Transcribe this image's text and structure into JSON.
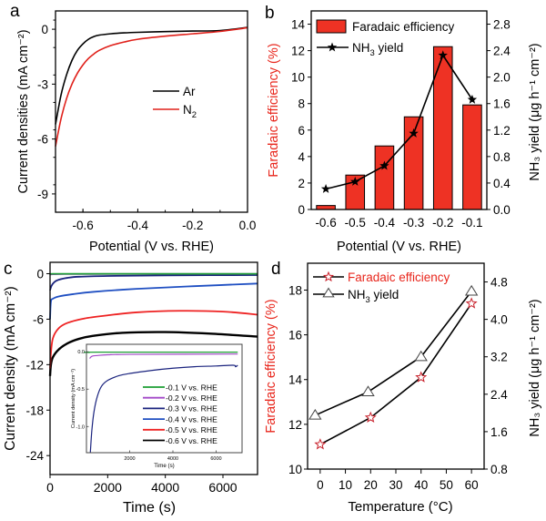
{
  "chart_data": [
    {
      "panel": "a",
      "type": "line",
      "xlabel": "Potential (V vs. RHE)",
      "ylabel": "Current densities (mA cm⁻²)",
      "xlim": [
        -0.7,
        0.0
      ],
      "ylim": [
        -10,
        1
      ],
      "xticks": [
        -0.6,
        -0.4,
        -0.2,
        0.0
      ],
      "xtick_labels": [
        "-0.6",
        "-0.4",
        "-0.2",
        "0.0"
      ],
      "yticks": [
        0,
        -3,
        -6,
        -9
      ],
      "ytick_labels": [
        "0",
        "-3",
        "-6",
        "-9"
      ],
      "legend": "center-right",
      "series": [
        {
          "name": "Ar",
          "label_main": "Ar",
          "label_sub": "",
          "color": "#000000",
          "x": [
            -0.7,
            -0.68,
            -0.66,
            -0.64,
            -0.62,
            -0.6,
            -0.58,
            -0.56,
            -0.54,
            -0.5,
            -0.45,
            -0.4,
            -0.3,
            -0.2,
            -0.1,
            0.0
          ],
          "y": [
            -5.2,
            -3.6,
            -2.5,
            -1.7,
            -1.15,
            -0.8,
            -0.55,
            -0.4,
            -0.32,
            -0.25,
            -0.2,
            -0.17,
            -0.13,
            -0.1,
            -0.07,
            0.1
          ]
        },
        {
          "name": "N2",
          "label_main": "N",
          "label_sub": "2",
          "color": "#e0201a",
          "x": [
            -0.7,
            -0.68,
            -0.66,
            -0.64,
            -0.62,
            -0.6,
            -0.58,
            -0.56,
            -0.54,
            -0.5,
            -0.45,
            -0.4,
            -0.3,
            -0.2,
            -0.1,
            0.0
          ],
          "y": [
            -6.4,
            -4.9,
            -3.8,
            -3.0,
            -2.4,
            -1.95,
            -1.6,
            -1.35,
            -1.15,
            -0.9,
            -0.7,
            -0.55,
            -0.38,
            -0.25,
            -0.12,
            0.08
          ]
        }
      ]
    },
    {
      "panel": "b",
      "type": "bar",
      "categories": [
        "-0.6",
        "-0.5",
        "-0.4",
        "-0.3",
        "-0.2",
        "-0.1"
      ],
      "xlabel": "Potential (V vs. RHE)",
      "ylabel": "Faradaic efficiency (%)",
      "ylabel2": "NH₃ yield (μg h⁻¹ cm⁻²)",
      "ylim": [
        0,
        15
      ],
      "ylim2": [
        0,
        3.0
      ],
      "yticks": [
        0,
        2,
        4,
        6,
        8,
        10,
        12,
        14
      ],
      "yticks2": [
        "0.0",
        "0.4",
        "0.8",
        "1.2",
        "1.6",
        "2.0",
        "2.4",
        "2.8"
      ],
      "legend": "top-left",
      "series": [
        {
          "name": "Faradaic efficiency",
          "type": "bar",
          "axis": "left",
          "color": "#ee3224",
          "values": [
            0.3,
            2.6,
            4.8,
            7.0,
            12.3,
            7.9
          ]
        },
        {
          "name": "NH3 yield",
          "label_main": "NH",
          "label_sub": "3",
          "label_rest": " yield",
          "type": "line",
          "marker": "star",
          "axis": "right",
          "color": "#000000",
          "values": [
            0.31,
            0.42,
            0.66,
            1.15,
            2.33,
            1.66
          ]
        }
      ]
    },
    {
      "panel": "c",
      "type": "line",
      "xlabel": "Time (s)",
      "ylabel": "Current density (mA cm⁻²)",
      "xlim": [
        0,
        7200
      ],
      "ylim": [
        -26.5,
        1.5
      ],
      "xticks": [
        0,
        2000,
        4000,
        6000
      ],
      "yticks": [
        0,
        -6,
        -12,
        -18,
        -24
      ],
      "legend": "inset-lower-right",
      "series": [
        {
          "name": "-0.1 V vs. RHE",
          "color": "#1b9e33",
          "x": [
            0,
            100,
            1000,
            7200
          ],
          "y": [
            -0.05,
            -0.02,
            -0.02,
            -0.02
          ]
        },
        {
          "name": "-0.2 V vs. RHE",
          "color": "#a349c8",
          "x": [
            0,
            100,
            500,
            2000,
            7200
          ],
          "y": [
            -0.12,
            -0.08,
            -0.05,
            -0.04,
            -0.03
          ]
        },
        {
          "name": "-0.3 V vs. RHE",
          "color": "#1a237e",
          "x": [
            0,
            50,
            150,
            300,
            600,
            1000,
            2000,
            4000,
            7200
          ],
          "y": [
            -2.2,
            -1.6,
            -1.1,
            -0.8,
            -0.55,
            -0.4,
            -0.3,
            -0.22,
            -0.18
          ]
        },
        {
          "name": "-0.4 V vs. RHE",
          "color": "#1f4fc2",
          "x": [
            0,
            30,
            100,
            300,
            800,
            1500,
            3000,
            5000,
            7200
          ],
          "y": [
            -6.0,
            -3.7,
            -3.3,
            -3.0,
            -2.7,
            -2.4,
            -2.0,
            -1.65,
            -1.3
          ]
        },
        {
          "name": "-0.5 V vs. RHE",
          "color": "#ee2222",
          "x": [
            0,
            30,
            100,
            300,
            600,
            1200,
            2000,
            3000,
            4500,
            6000,
            7200
          ],
          "y": [
            -12.5,
            -10.5,
            -8.5,
            -7.2,
            -6.5,
            -5.9,
            -5.5,
            -5.1,
            -4.9,
            -5.0,
            -5.4
          ]
        },
        {
          "name": "-0.6 V vs. RHE",
          "color": "#000000",
          "x": [
            0,
            30,
            100,
            300,
            600,
            1000,
            1500,
            2500,
            4000,
            5500,
            7200
          ],
          "y": [
            -13.5,
            -12.0,
            -11.0,
            -10.0,
            -9.2,
            -8.6,
            -8.2,
            -7.8,
            -7.7,
            -7.9,
            -8.3
          ]
        }
      ],
      "inset": {
        "xlabel": "Time (s)",
        "ylabel": "Current density (mA cm⁻²)",
        "xlim": [
          0,
          7200
        ],
        "ylim": [
          -1.35,
          0.1
        ],
        "xticks": [
          2000,
          4000,
          6000
        ],
        "yticks": [
          "0.0",
          "-0.5",
          "-1.0"
        ],
        "yticks_val": [
          0.0,
          -0.5,
          -1.0
        ],
        "series_shown": [
          "-0.1 V vs. RHE",
          "-0.2 V vs. RHE",
          "-0.3 V vs. RHE"
        ],
        "series": [
          {
            "name": "-0.1 V vs. RHE",
            "color": "#1b9e33",
            "x": [
              150,
              500,
              7000
            ],
            "y": [
              -0.01,
              -0.005,
              -0.005
            ]
          },
          {
            "name": "-0.2 V vs. RHE",
            "color": "#a349c8",
            "x": [
              150,
              250,
              500,
              1000,
              2000,
              7000
            ],
            "y": [
              -0.09,
              -0.06,
              -0.05,
              -0.04,
              -0.035,
              -0.03
            ]
          },
          {
            "name": "-0.3 V vs. RHE",
            "color": "#1a237e",
            "x": [
              180,
              250,
              350,
              500,
              700,
              1000,
              1500,
              2000,
              3000,
              4000,
              5000,
              6000,
              6800,
              6900,
              7000
            ],
            "y": [
              -1.35,
              -1.05,
              -0.8,
              -0.6,
              -0.46,
              -0.38,
              -0.32,
              -0.29,
              -0.25,
              -0.22,
              -0.2,
              -0.19,
              -0.18,
              -0.2,
              -0.18
            ]
          }
        ]
      }
    },
    {
      "panel": "d",
      "type": "line",
      "xlabel": "Temperature (°C)",
      "ylabel": "Faradaic efficiency (%)",
      "ylabel2": "NH₃ yield (μg h⁻¹ cm⁻²)",
      "xlim": [
        -5,
        65
      ],
      "ylim": [
        10,
        19.2
      ],
      "ylim2": [
        0.8,
        5.2
      ],
      "xticks": [
        0,
        10,
        20,
        30,
        40,
        50,
        60
      ],
      "yticks": [
        10,
        12,
        14,
        16,
        18
      ],
      "yticks2": [
        "0.8",
        "1.6",
        "2.4",
        "3.2",
        "4.0",
        "4.8"
      ],
      "legend": "top-left",
      "series": [
        {
          "name": "Faradaic efficiency",
          "marker": "star-open",
          "axis": "left",
          "color": "#c8202a",
          "x": [
            0,
            20,
            40,
            60
          ],
          "values": [
            11.1,
            12.3,
            14.1,
            17.4
          ]
        },
        {
          "name": "NH3 yield",
          "label_main": "NH",
          "label_sub": "3",
          "label_rest": " yield",
          "marker": "triangle-open",
          "axis": "right",
          "color": "#000000",
          "x": [
            -2,
            19,
            40,
            60
          ],
          "values": [
            1.95,
            2.45,
            3.2,
            4.6
          ]
        }
      ]
    }
  ],
  "panel_labels": [
    "a",
    "b",
    "c",
    "d"
  ],
  "colors": {
    "fe_red": "#e8261c",
    "axis": "#000000"
  }
}
